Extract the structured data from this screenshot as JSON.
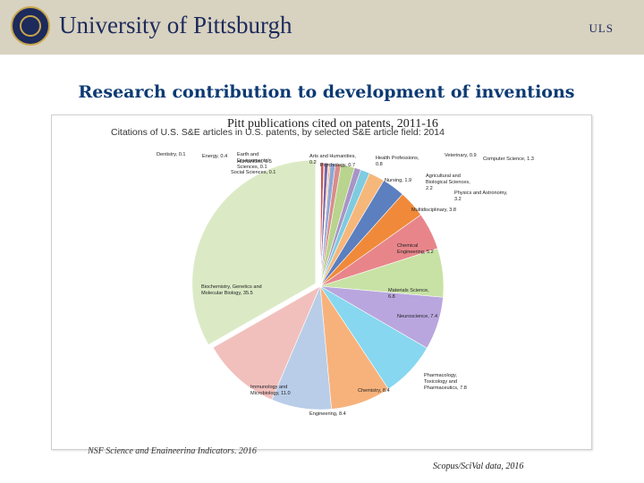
{
  "header": {
    "university": "University of Pittsburgh",
    "badge": "ULS"
  },
  "slide": {
    "title": "Research contribution to development of inventions",
    "subtitle": "Pitt publications cited on patents, 2011-16",
    "source_left": "NSF Science and Engineering Indicators, 2016",
    "source_right": "Scopus/SciVal data, 2016"
  },
  "chart_data": {
    "type": "pie",
    "title": "Citations of U.S. S&E articles in U.S. patents, by selected S&E article field: 2014",
    "slices": [
      {
        "label": "Dentistry, 0.1",
        "value": 0.1,
        "color": "#5b7fbf"
      },
      {
        "label": "Energy, 0.4",
        "value": 0.4,
        "color": "#c95450"
      },
      {
        "label": "Earth and Environmental Sciences, 0.1",
        "value": 0.1,
        "color": "#9ab95a"
      },
      {
        "label": "Humanities, 0.5",
        "value": 0.5,
        "color": "#7f62a4"
      },
      {
        "label": "Social Sciences, 0.1",
        "value": 0.1,
        "color": "#4aaec8"
      },
      {
        "label": "Arts and Humanities, 0.2",
        "value": 0.2,
        "color": "#f29a43"
      },
      {
        "label": "Psychology, 0.7",
        "value": 0.7,
        "color": "#8da6d8"
      },
      {
        "label": "Health Professions, 0.8",
        "value": 0.8,
        "color": "#d98d8a"
      },
      {
        "label": "Nursing, 1.9",
        "value": 1.9,
        "color": "#b9d48e"
      },
      {
        "label": "Veterinary, 0.9",
        "value": 0.9,
        "color": "#a894c6"
      },
      {
        "label": "Computer Science, 1.3",
        "value": 1.3,
        "color": "#7fcbe0"
      },
      {
        "label": "Agricultural and Biological Sciences, 2.2",
        "value": 2.2,
        "color": "#f6b77b"
      },
      {
        "label": "Physics and Astronomy, 3.2",
        "value": 3.2,
        "color": "#5b7fbf"
      },
      {
        "label": "Multidisciplinary, 3.8",
        "value": 3.8,
        "color": "#f08a3a"
      },
      {
        "label": "Chemical Engineering, 5.2",
        "value": 5.2,
        "color": "#e8858a"
      },
      {
        "label": "Materials Science, 6.8",
        "value": 6.8,
        "color": "#c7e2a4"
      },
      {
        "label": "Neuroscience, 7.4",
        "value": 7.4,
        "color": "#b9a6de"
      },
      {
        "label": "Pharmacology, Toxicology and Pharmaceutics, 7.8",
        "value": 7.8,
        "color": "#86d7ef"
      },
      {
        "label": "Chemistry, 8.4",
        "value": 8.4,
        "color": "#f7b27b"
      },
      {
        "label": "Engineering, 8.4",
        "value": 8.4,
        "color": "#b9cde8"
      },
      {
        "label": "Immunology and Microbiology, 11.0",
        "value": 11.0,
        "color": "#f1c0bd"
      },
      {
        "label": "Biochemistry, Genetics and Molecular Biology, 35.5",
        "value": 35.5,
        "color": "#dbeac5"
      }
    ]
  }
}
